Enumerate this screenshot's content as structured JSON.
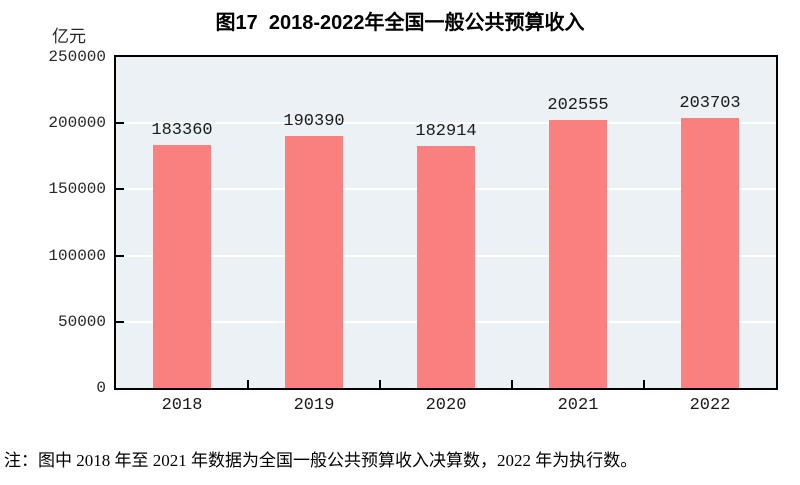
{
  "title": "图17  2018-2022年全国一般公共预算收入",
  "note": "注：图中 2018 年至 2021 年数据为全国一般公共预算收入决算数，2022 年为执行数。",
  "chart_data": {
    "type": "bar",
    "title": "图17  2018-2022年全国一般公共预算收入",
    "unit_label": "亿元",
    "categories": [
      "2018",
      "2019",
      "2020",
      "2021",
      "2022"
    ],
    "values": [
      183360,
      190390,
      182914,
      202555,
      203703
    ],
    "xlabel": "",
    "ylabel": "亿元",
    "ylim": [
      0,
      250000
    ],
    "yticks": [
      0,
      50000,
      100000,
      150000,
      200000,
      250000
    ],
    "grid": true,
    "legend": "none",
    "colors": {
      "bar_fill": "#fa8080",
      "plot_background": "#ecf1f6",
      "gridline": "#ffffff",
      "axis_border": "#000000",
      "text": "#1a1a1a"
    }
  }
}
